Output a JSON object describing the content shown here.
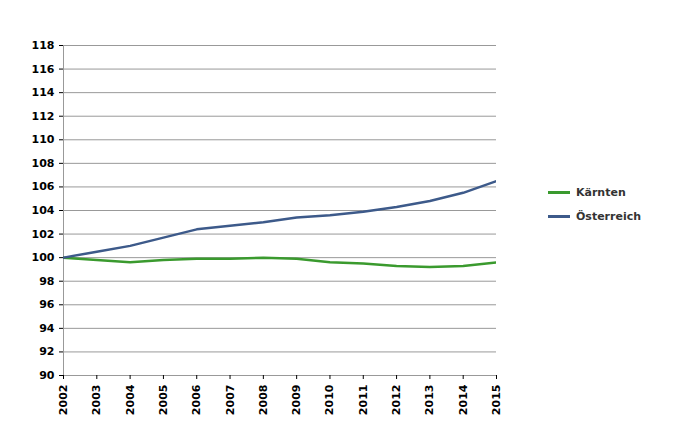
{
  "chart_data": {
    "type": "line",
    "x": [
      2002,
      2003,
      2004,
      2005,
      2006,
      2007,
      2008,
      2009,
      2010,
      2011,
      2012,
      2013,
      2014,
      2015
    ],
    "series": [
      {
        "name": "Kärnten",
        "color": "#3a9a2e",
        "values": [
          100,
          99.8,
          99.6,
          99.8,
          99.9,
          99.9,
          100.0,
          99.9,
          99.6,
          99.5,
          99.3,
          99.2,
          99.3,
          99.6
        ]
      },
      {
        "name": "Österreich",
        "color": "#3d5a8a",
        "values": [
          100,
          100.5,
          101.0,
          101.7,
          102.4,
          102.7,
          103.0,
          103.4,
          103.6,
          103.9,
          104.3,
          104.8,
          105.5,
          106.5
        ]
      }
    ],
    "xlim": [
      2002,
      2015
    ],
    "xticks": [
      2002,
      2003,
      2004,
      2005,
      2006,
      2007,
      2008,
      2009,
      2010,
      2011,
      2012,
      2013,
      2014,
      2015
    ],
    "ylim": [
      90,
      118
    ],
    "yticks": [
      90,
      92,
      94,
      96,
      98,
      100,
      102,
      104,
      106,
      108,
      110,
      112,
      114,
      116,
      118
    ],
    "grid": true,
    "legend": "right"
  }
}
